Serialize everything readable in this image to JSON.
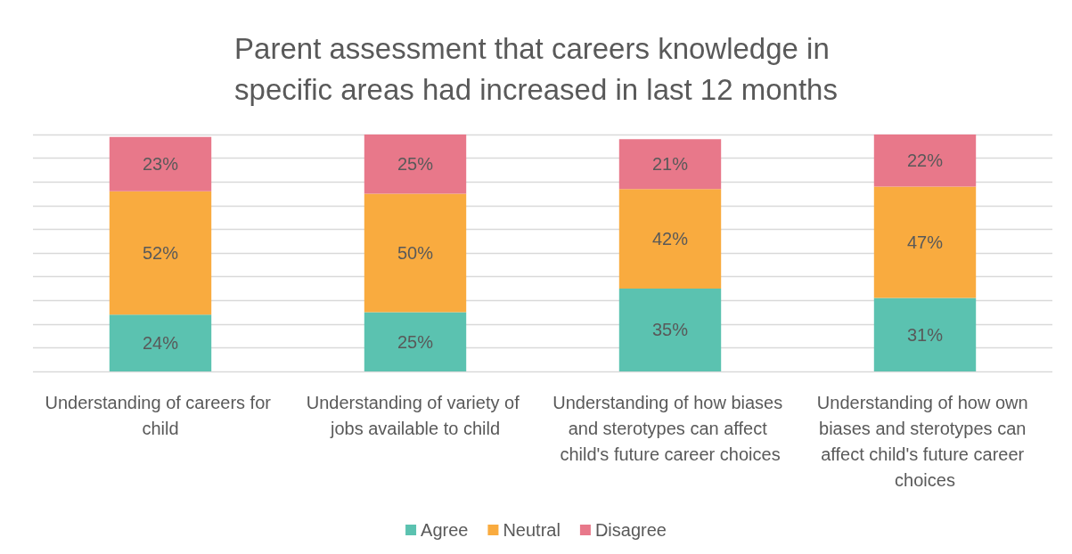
{
  "chart_data": {
    "type": "bar",
    "stacked": true,
    "title": "Parent assessment that careers knowledge in specific areas had increased in last 12 months",
    "categories": [
      "Understanding of careers for child",
      "Understanding of variety of jobs available to child",
      "Understanding of how biases and sterotypes can affect child's future career choices",
      "Understanding of how own biases and sterotypes can affect child's future career choices"
    ],
    "series": [
      {
        "name": "Agree",
        "color": "#5bc2b0",
        "values": [
          24,
          25,
          35,
          31
        ],
        "value_labels": [
          "24%",
          "25%",
          "35%",
          "31%"
        ]
      },
      {
        "name": "Neutral",
        "color": "#f9ab3f",
        "values": [
          52,
          50,
          42,
          47
        ],
        "value_labels": [
          "52%",
          "50%",
          "42%",
          "47%"
        ]
      },
      {
        "name": "Disagree",
        "color": "#e8788a",
        "values": [
          23,
          25,
          21,
          22
        ],
        "value_labels": [
          "23%",
          "25%",
          "21%",
          "22%"
        ]
      }
    ],
    "ylim": [
      0,
      100
    ],
    "yticks": [
      {
        "value": 0,
        "label": null
      },
      {
        "value": 10,
        "label": null
      },
      {
        "value": 20,
        "label": null
      },
      {
        "value": 30,
        "label": null
      },
      {
        "value": 40,
        "label": null
      },
      {
        "value": 50,
        "label": null
      },
      {
        "value": 60,
        "label": null
      },
      {
        "value": 70,
        "label": null
      },
      {
        "value": 80,
        "label": null
      },
      {
        "value": 90,
        "label": null
      },
      {
        "value": 100,
        "label": null
      }
    ],
    "tick_labels": "x",
    "grid": "y",
    "legend": "bottom"
  }
}
